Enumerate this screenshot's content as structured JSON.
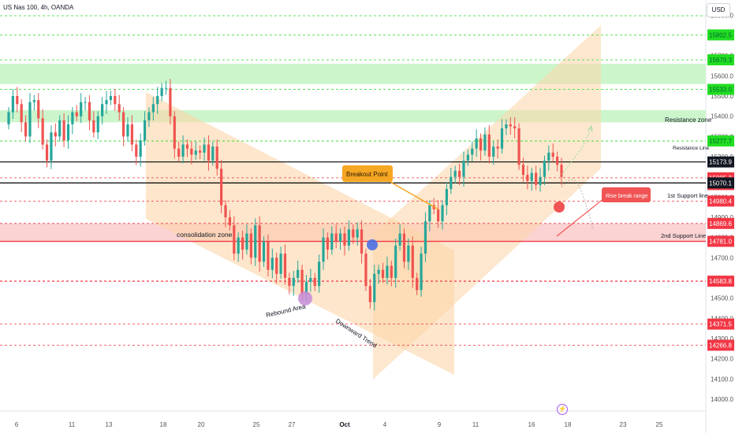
{
  "header": {
    "title": "US Nas 100, 4h, OANDA",
    "currency": "USD"
  },
  "icons": {
    "event": "lightning-icon"
  },
  "colors": {
    "up": "#26a69a",
    "down": "#ef5350",
    "green_label": "#22dd22",
    "red_label": "#f23645",
    "black_label": "#131722",
    "green_zone": "#ccf5cc",
    "red_zone": "#fbd3d3",
    "channel": "#fbd5a8"
  },
  "chart_data": {
    "type": "candlestick",
    "title": "US Nas 100, 4h, OANDA",
    "ylim": [
      13950,
      16050
    ],
    "y_ticks": [
      14000,
      14100,
      14200,
      14300,
      14400,
      14500,
      14600,
      14700,
      14800,
      14900,
      15000,
      15100,
      15200,
      15300,
      15400,
      15500,
      15600,
      15700,
      15800,
      15900
    ],
    "x_ticks": [
      "6",
      "11",
      "13",
      "18",
      "20",
      "25",
      "27",
      "Oct",
      "4",
      "9",
      "11",
      "16",
      "18",
      "23",
      "25"
    ],
    "price_labels": [
      {
        "text": "15802.5",
        "value": 15802.5,
        "kind": "green"
      },
      {
        "text": "15679.3",
        "value": 15679.3,
        "kind": "green"
      },
      {
        "text": "15533.0",
        "value": 15533.0,
        "kind": "green"
      },
      {
        "text": "15277.7",
        "value": 15277.7,
        "kind": "green"
      },
      {
        "text": "15173.9",
        "value": 15173.9,
        "kind": "black"
      },
      {
        "text": "15095.3",
        "value": 15095.3,
        "kind": "red"
      },
      {
        "text": "01:13:58",
        "value": 15062,
        "kind": "red"
      },
      {
        "text": "15070.1",
        "value": 15070.1,
        "kind": "black"
      },
      {
        "text": "14980.4",
        "value": 14980.4,
        "kind": "red"
      },
      {
        "text": "14869.6",
        "value": 14869.6,
        "kind": "red"
      },
      {
        "text": "14781.0",
        "value": 14781.0,
        "kind": "red"
      },
      {
        "text": "14583.8",
        "value": 14583.8,
        "kind": "red"
      },
      {
        "text": "14371.5",
        "value": 14371.5,
        "kind": "red"
      },
      {
        "text": "14266.8",
        "value": 14266.8,
        "kind": "red"
      }
    ],
    "annotations": {
      "resistance_zone": "Resistance zone",
      "resistance_line": "Resistance Line",
      "support_1": "1st Support line",
      "support_2": "2nd Support Line",
      "consolidation": "consolidation zone",
      "breakout": "Breakout Point",
      "rise_break": "Rise break range",
      "rebound": "Rebound Area",
      "downtrend": "Downward Trend"
    },
    "zones": [
      {
        "name": "green-zone-upper",
        "from": 15560,
        "to": 15660
      },
      {
        "name": "green-zone-lower",
        "from": 15370,
        "to": 15430
      },
      {
        "name": "consolidation-zone",
        "from": 14781,
        "to": 14869.6
      }
    ],
    "candles_close": [
      15420,
      15500,
      15460,
      15370,
      15300,
      15470,
      15480,
      15390,
      15260,
      15180,
      15320,
      15300,
      15380,
      15280,
      15360,
      15420,
      15400,
      15470,
      15470,
      15380,
      15320,
      15400,
      15460,
      15480,
      15500,
      15460,
      15420,
      15300,
      15360,
      15260,
      15200,
      15280,
      15380,
      15420,
      15460,
      15500,
      15540,
      15540,
      15400,
      15240,
      15200,
      15260,
      15240,
      15210,
      15230,
      15220,
      15260,
      15180,
      15250,
      15140,
      14960,
      14900,
      14860,
      14720,
      14800,
      14740,
      14820,
      14700,
      14860,
      14680,
      14780,
      14640,
      14700,
      14620,
      14720,
      14600,
      14560,
      14600,
      14640,
      14520,
      14580,
      14600,
      14560,
      14680,
      14800,
      14740,
      14820,
      14780,
      14820,
      14760,
      14840,
      14800,
      14840,
      14720,
      14560,
      14480,
      14620,
      14640,
      14600,
      14660,
      14600,
      14760,
      14820,
      14680,
      14760,
      14600,
      14540,
      14720,
      14880,
      14960,
      14940,
      14880,
      14960,
      15040,
      15100,
      15130,
      15100,
      15180,
      15210,
      15240,
      15290,
      15230,
      15310,
      15200,
      15250,
      15240,
      15340,
      15360,
      15350,
      15340,
      15160,
      15110,
      15080,
      15120,
      15060,
      15100,
      15180,
      15220,
      15200,
      15160,
      15100
    ]
  }
}
